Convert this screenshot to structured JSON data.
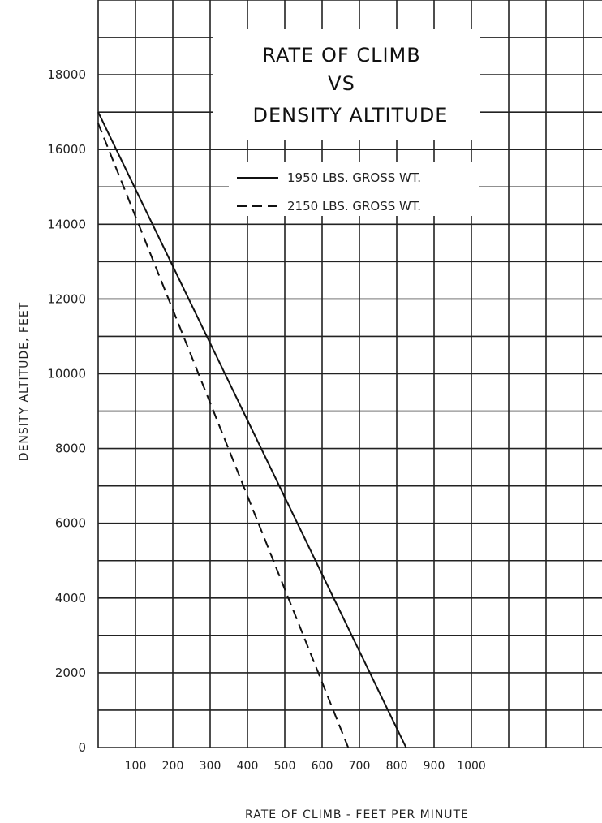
{
  "chart_data": {
    "type": "line",
    "title": [
      "RATE OF CLIMB",
      "VS",
      "DENSITY ALTITUDE"
    ],
    "xlabel": "RATE OF CLIMB - FEET PER MINUTE",
    "ylabel": "DENSITY ALTITUDE, FEET",
    "xlim": [
      0,
      1350
    ],
    "ylim": [
      0,
      20000
    ],
    "x_ticks": [
      100,
      200,
      300,
      400,
      500,
      600,
      700,
      800,
      900,
      1000
    ],
    "x_tick_labels": [
      "100",
      "200",
      "300",
      "400",
      "500",
      "600",
      "700",
      "800",
      "900",
      "1000"
    ],
    "y_ticks": [
      0,
      2000,
      4000,
      6000,
      8000,
      10000,
      12000,
      14000,
      16000,
      18000
    ],
    "y_tick_labels": [
      "0",
      "2000",
      "4000",
      "6000",
      "8000",
      "10000",
      "12000",
      "14000",
      "16000",
      "18000"
    ],
    "grid": true,
    "legend_position": "top-right",
    "series": [
      {
        "name": "1950 LBS. GROSS WT.",
        "style": "solid",
        "x": [
          0,
          825
        ],
        "y": [
          17000,
          0
        ]
      },
      {
        "name": "2150 LBS. GROSS WT.",
        "style": "dashed",
        "x": [
          0,
          670
        ],
        "y": [
          16700,
          0
        ]
      }
    ]
  }
}
